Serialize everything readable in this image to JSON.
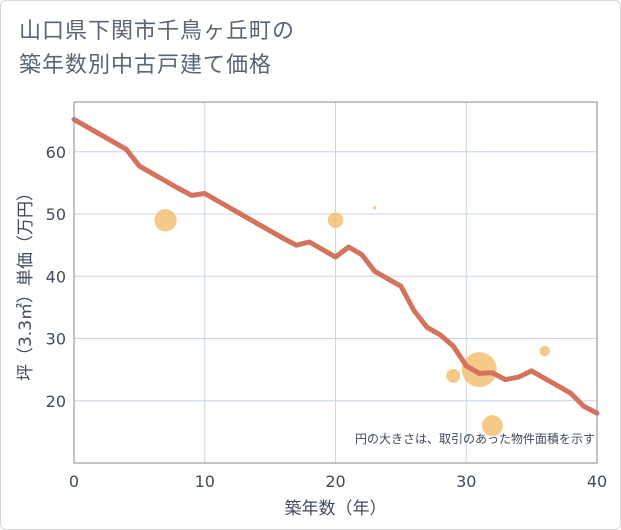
{
  "title": {
    "line1": "山口県下関市千鳥ヶ丘町の",
    "line2": "築年数別中古戸建て価格"
  },
  "colors": {
    "line": "#d4725e",
    "bubble": "#f2bd6b",
    "grid": "#c9d6e3",
    "frame": "#8a8a8a"
  },
  "chart_data": {
    "type": "line",
    "title": "山口県下関市千鳥ヶ丘町の築年数別中古戸建て価格",
    "xlabel": "築年数（年）",
    "ylabel": "坪（3.3㎡）単価（万円）",
    "xlim": [
      0,
      40
    ],
    "ylim": [
      10,
      68
    ],
    "xticks": [
      0,
      10,
      20,
      30,
      40
    ],
    "yticks": [
      20,
      30,
      40,
      50,
      60
    ],
    "grid": true,
    "annotation": "円の大きさは、取引のあった物件面積を示す",
    "series": [
      {
        "name": "trend",
        "x": [
          0,
          1,
          2,
          3,
          4,
          5,
          6,
          7,
          8,
          9,
          10,
          11,
          12,
          13,
          14,
          15,
          16,
          17,
          18,
          19,
          20,
          21,
          22,
          23,
          24,
          25,
          26,
          27,
          28,
          29,
          30,
          31,
          32,
          33,
          34,
          35,
          36,
          37,
          38,
          39,
          40
        ],
        "y": [
          65.2,
          64.0,
          62.8,
          61.6,
          60.4,
          57.7,
          56.5,
          55.3,
          54.1,
          53.0,
          53.3,
          52.1,
          50.9,
          49.7,
          48.5,
          47.3,
          46.1,
          45.0,
          45.5,
          44.3,
          43.1,
          44.7,
          43.5,
          40.8,
          39.6,
          38.4,
          34.5,
          31.8,
          30.6,
          28.8,
          25.6,
          24.4,
          24.5,
          23.4,
          23.8,
          24.8,
          23.6,
          22.4,
          21.2,
          19.1,
          18.0
        ]
      }
    ],
    "bubbles": [
      {
        "x": 7,
        "y": 49.0,
        "size": 3.2
      },
      {
        "x": 20,
        "y": 49.0,
        "size": 2.2
      },
      {
        "x": 23,
        "y": 51.0,
        "size": 0.5
      },
      {
        "x": 29,
        "y": 24.0,
        "size": 2.0
      },
      {
        "x": 31,
        "y": 25.0,
        "size": 5.0
      },
      {
        "x": 32,
        "y": 16.0,
        "size": 3.0
      },
      {
        "x": 36,
        "y": 28.0,
        "size": 1.5
      }
    ]
  }
}
